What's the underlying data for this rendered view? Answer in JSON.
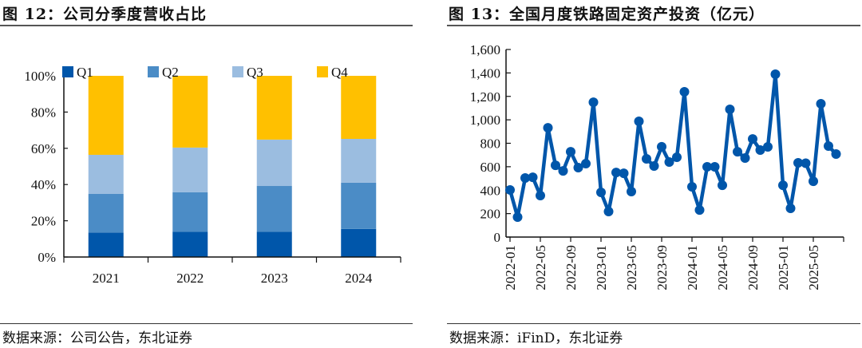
{
  "chart_data": [
    {
      "type": "bar",
      "stacked": true,
      "title": "图 12：公司分季度营收占比",
      "source": "数据来源：公司公告，东北证券",
      "xlabel": "",
      "ylabel": "",
      "categories": [
        "2021",
        "2022",
        "2023",
        "2024"
      ],
      "series": [
        {
          "name": "Q1",
          "color": "#0056AA",
          "values": [
            13.5,
            14.0,
            14.0,
            15.5
          ]
        },
        {
          "name": "Q2",
          "color": "#4B8CC6",
          "values": [
            21.3,
            21.7,
            25.2,
            25.5
          ]
        },
        {
          "name": "Q3",
          "color": "#9BBDE0",
          "values": [
            21.6,
            24.7,
            25.6,
            24.2
          ]
        },
        {
          "name": "Q4",
          "color": "#FFC000",
          "values": [
            43.6,
            39.6,
            35.2,
            34.8
          ]
        }
      ],
      "ylim": [
        0,
        100
      ],
      "yticks": [
        "0%",
        "20%",
        "40%",
        "60%",
        "80%",
        "100%"
      ],
      "ytick_values": [
        0,
        20,
        40,
        60,
        80,
        100
      ],
      "grid": false,
      "legend": "top"
    },
    {
      "type": "line",
      "title": "图 13：全国月度铁路固定资产投资（亿元）",
      "source": "数据来源：iFinD，东北证券",
      "xlabel": "",
      "ylabel": "",
      "series": [
        {
          "name": "全国月度铁路固定资产投资",
          "color": "#0056AA",
          "x": [
            "2022-01",
            "2022-02",
            "2022-03",
            "2022-04",
            "2022-05",
            "2022-06",
            "2022-07",
            "2022-08",
            "2022-09",
            "2022-10",
            "2022-11",
            "2022-12",
            "2023-01",
            "2023-02",
            "2023-03",
            "2023-04",
            "2023-05",
            "2023-06",
            "2023-07",
            "2023-08",
            "2023-09",
            "2023-10",
            "2023-11",
            "2023-12",
            "2024-01",
            "2024-02",
            "2024-03",
            "2024-04",
            "2024-05",
            "2024-06",
            "2024-07",
            "2024-08",
            "2024-09",
            "2024-10",
            "2024-11",
            "2024-12",
            "2025-01",
            "2025-02",
            "2025-03",
            "2025-04",
            "2025-05",
            "2025-06",
            "2025-07",
            "2025-08"
          ],
          "values": [
            402,
            170,
            504,
            510,
            354,
            932,
            612,
            564,
            728,
            592,
            626,
            1150,
            381,
            218,
            551,
            544,
            388,
            987,
            667,
            606,
            770,
            640,
            681,
            1239,
            429,
            231,
            599,
            599,
            442,
            1089,
            728,
            674,
            837,
            742,
            769,
            1389,
            442,
            245,
            633,
            630,
            476,
            1137,
            776,
            708
          ]
        }
      ],
      "xticks": [
        "2022-01",
        "2022-05",
        "2022-09",
        "2023-01",
        "2023-05",
        "2023-09",
        "2024-01",
        "2024-05",
        "2024-09",
        "2025-01",
        "2025-05"
      ],
      "ylim": [
        0,
        1600
      ],
      "yticks": [
        "0",
        "200",
        "400",
        "600",
        "800",
        "1,000",
        "1,200",
        "1,400",
        "1,600"
      ],
      "ytick_values": [
        0,
        200,
        400,
        600,
        800,
        1000,
        1200,
        1400,
        1600
      ],
      "grid": false,
      "legend": "none"
    }
  ]
}
